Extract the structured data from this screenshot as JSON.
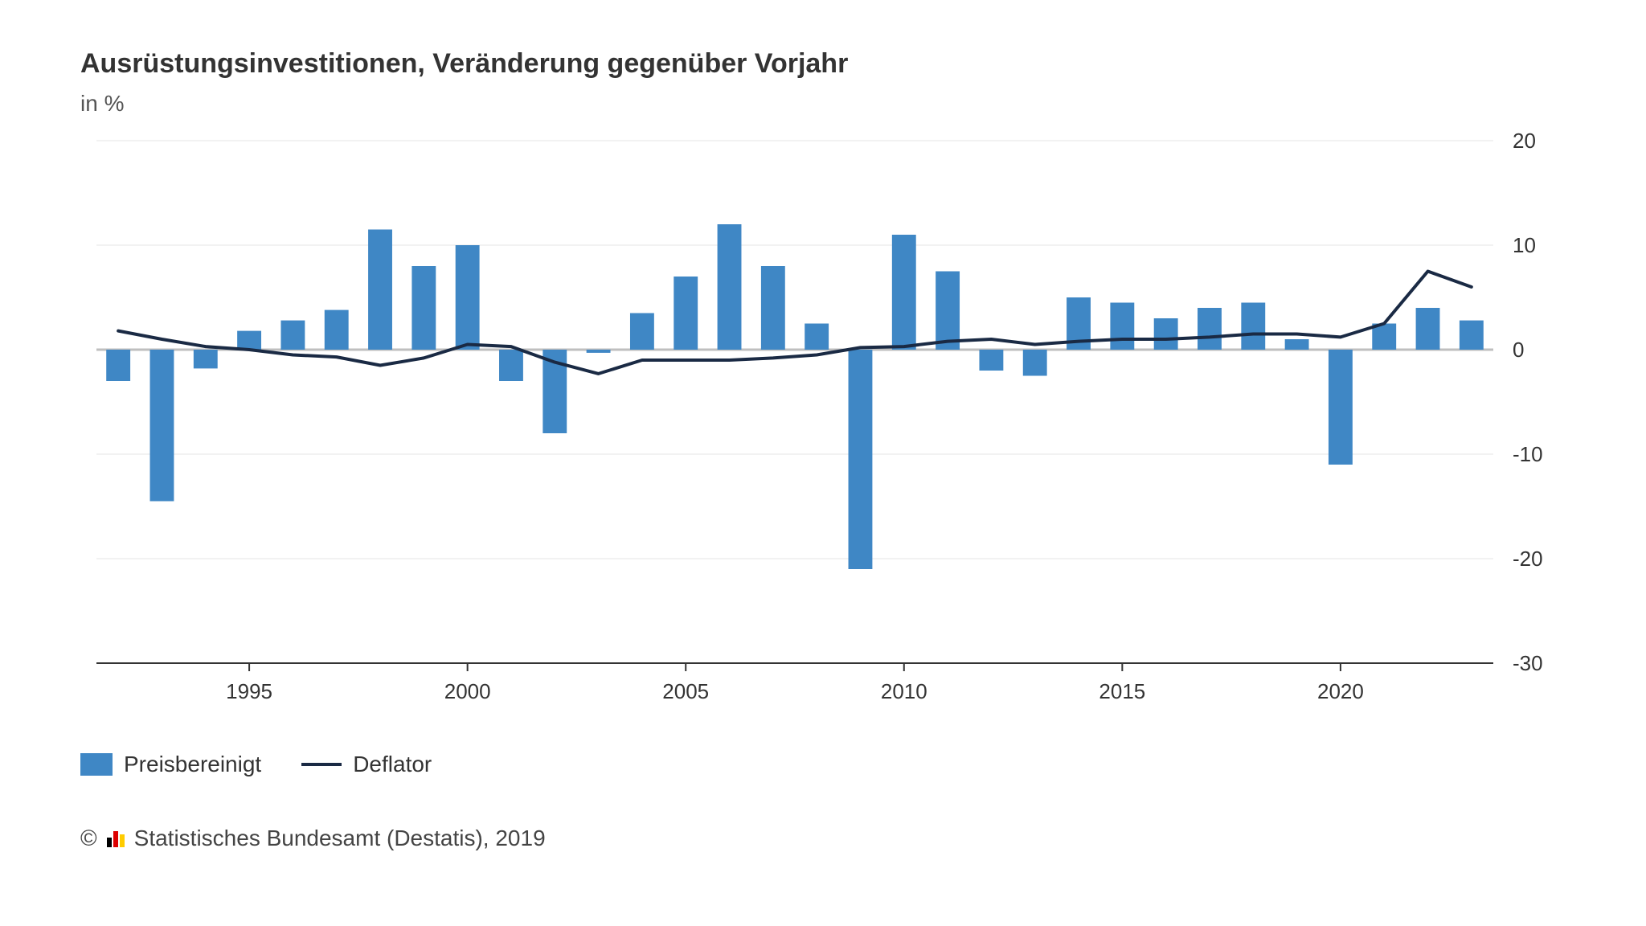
{
  "chart": {
    "title": "Ausrüstungsinvestitionen, Veränderung gegenüber Vorjahr",
    "subtitle": "in %",
    "type": "bar+line",
    "background_color": "#ffffff",
    "grid_color": "#e5e5e5",
    "zero_line_color": "#bfbfbf",
    "axis_line_color": "#333333",
    "text_color": "#333333",
    "title_fontsize": 34,
    "subtitle_fontsize": 28,
    "axis_fontsize": 26,
    "y": {
      "min": -30,
      "max": 20,
      "ticks": [
        -30,
        -20,
        -10,
        0,
        10,
        20
      ]
    },
    "x": {
      "years": [
        1992,
        1993,
        1994,
        1995,
        1996,
        1997,
        1998,
        1999,
        2000,
        2001,
        2002,
        2003,
        2004,
        2005,
        2006,
        2007,
        2008,
        2009,
        2010,
        2011,
        2012,
        2013,
        2014,
        2015,
        2016,
        2017,
        2018,
        2019,
        2020,
        2021,
        2022,
        2023
      ],
      "tick_labels": [
        1995,
        2000,
        2005,
        2010,
        2015,
        2020
      ]
    },
    "series": {
      "bars": {
        "label": "Preisbereinigt",
        "color": "#3f87c5",
        "width_ratio": 0.55,
        "values": [
          -3.0,
          -14.5,
          -1.8,
          1.8,
          2.8,
          3.8,
          11.5,
          8.0,
          10.0,
          -3.0,
          -8.0,
          -0.3,
          3.5,
          7.0,
          12.0,
          8.0,
          2.5,
          -21.0,
          11.0,
          7.5,
          -2.0,
          -2.5,
          5.0,
          4.5,
          3.0,
          4.0,
          4.5,
          1.0,
          -11.0,
          2.5,
          4.0,
          2.8
        ]
      },
      "line": {
        "label": "Deflator",
        "color": "#1a2a44",
        "width": 4,
        "values": [
          1.8,
          1.0,
          0.3,
          0.0,
          -0.5,
          -0.7,
          -1.5,
          -0.8,
          0.5,
          0.3,
          -1.2,
          -2.3,
          -1.0,
          -1.0,
          -1.0,
          -0.8,
          -0.5,
          0.2,
          0.3,
          0.8,
          1.0,
          0.5,
          0.8,
          1.0,
          1.0,
          1.2,
          1.5,
          1.5,
          1.2,
          2.5,
          7.5,
          6.0
        ]
      }
    },
    "legend": {
      "bars_label": "Preisbereinigt",
      "line_label": "Deflator"
    }
  },
  "footer": {
    "copyright_symbol": "©",
    "text": "Statistisches Bundesamt (Destatis), 2019",
    "logo_colors": [
      "#000000",
      "#dd0000",
      "#ffcc00"
    ]
  }
}
